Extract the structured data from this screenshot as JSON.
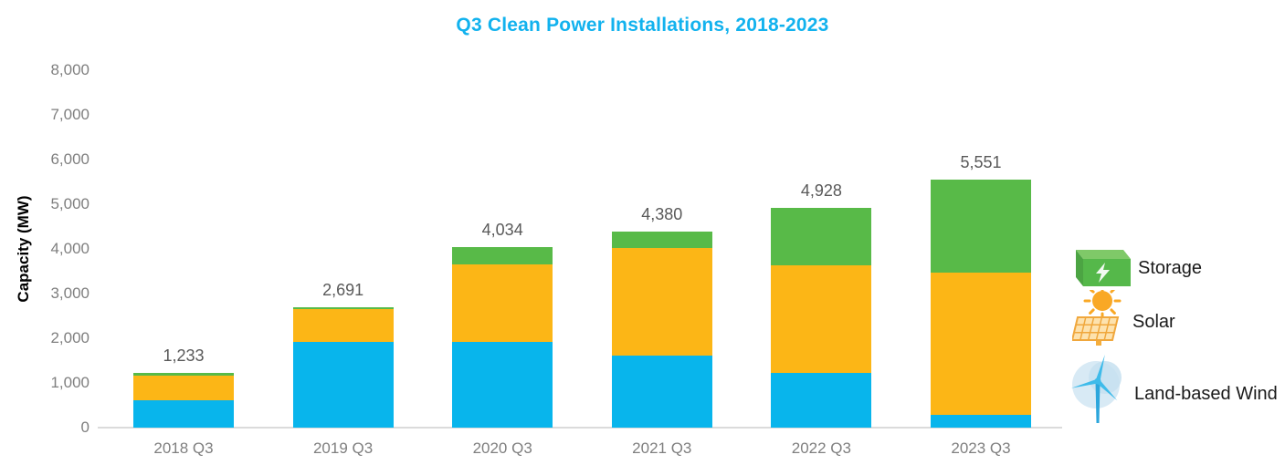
{
  "title": {
    "text": "Q3 Clean Power Installations, 2018-2023"
  },
  "y_axis": {
    "label": "Capacity (MW)",
    "tick_labels": [
      "0",
      "1,000",
      "2,000",
      "3,000",
      "4,000",
      "5,000",
      "6,000",
      "7,000",
      "8,000"
    ],
    "tick_step_mw": 1000,
    "max_mw": 8000
  },
  "chart_data": {
    "type": "bar",
    "stacked": true,
    "title": "Q3 Clean Power Installations, 2018-2023",
    "xlabel": "",
    "ylabel": "Capacity (MW)",
    "ylim": [
      0,
      8000
    ],
    "grid": false,
    "legend_position": "right",
    "categories": [
      "2018 Q3",
      "2019 Q3",
      "2020 Q3",
      "2021 Q3",
      "2022 Q3",
      "2023 Q3"
    ],
    "series": [
      {
        "name": "Land-based Wind",
        "color": "#08B5EC",
        "values": [
          610,
          1927,
          1927,
          1604,
          1231,
          293
        ]
      },
      {
        "name": "Solar",
        "color": "#FCB616",
        "values": [
          550,
          723,
          1726,
          2407,
          2407,
          3177
        ]
      },
      {
        "name": "Storage",
        "color": "#58BA48",
        "values": [
          73,
          41,
          381,
          369,
          1290,
          2081
        ]
      }
    ],
    "totals_mw": [
      1233,
      2691,
      4034,
      4380,
      4928,
      5551
    ],
    "total_labels": [
      "1,233",
      "2,691",
      "4,034",
      "4,380",
      "4,928",
      "5,551"
    ]
  },
  "legend": {
    "items": [
      {
        "label": "Storage",
        "icon": "battery-storage-icon"
      },
      {
        "label": "Solar",
        "icon": "solar-panel-icon"
      },
      {
        "label": "Land-based Wind",
        "icon": "wind-turbine-icon"
      }
    ]
  },
  "colors": {
    "title_text": "#12B2EE",
    "axis_text": "#7F7F7F",
    "value_label_text": "#595959",
    "legend_text": "#1A1A1A",
    "baseline": "#DBDBDB"
  }
}
